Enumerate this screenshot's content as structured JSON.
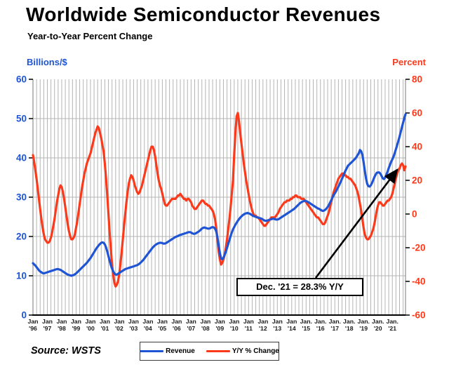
{
  "page": {
    "title": "Worldwide Semiconductor Revenues",
    "subtitle": "Year-to-Year Percent Change"
  },
  "source": "Source: WSTS",
  "annotation": {
    "text": "Dec. '21 = 28.3% Y/Y"
  },
  "legend": [
    {
      "label": "Revenue",
      "color": "#1f55d4"
    },
    {
      "label": "Y/Y % Change",
      "color": "#fb3a1c"
    }
  ],
  "colors": {
    "grid": "#b4b4b4",
    "plot_edge": "#777777",
    "axis_line": "#000000",
    "x_label": "#1a1a1a",
    "arrow": "#000000"
  },
  "axes": {
    "left": {
      "title": "Billions/$",
      "color": "#1f55d4",
      "ticks": [
        0,
        10,
        20,
        30,
        40,
        50,
        60
      ],
      "range": [
        0,
        60
      ]
    },
    "right": {
      "title": "Percent",
      "color": "#fb3a1c",
      "ticks": [
        -60,
        -40,
        -20,
        0,
        20,
        40,
        60,
        80
      ],
      "range": [
        -60,
        80
      ]
    },
    "x": {
      "labels": [
        [
          "Jan",
          "'96"
        ],
        [
          "Jan",
          "'97"
        ],
        [
          "Jan",
          "'98"
        ],
        [
          "Jan",
          "'99"
        ],
        [
          "Jan",
          "'00"
        ],
        [
          "Jan",
          "'01"
        ],
        [
          "Jan",
          "'02"
        ],
        [
          "Jan",
          "'03"
        ],
        [
          "Jan",
          "'04"
        ],
        [
          "Jan",
          "'05"
        ],
        [
          "Jan",
          "'06"
        ],
        [
          "Jan",
          "'07"
        ],
        [
          "Jan",
          "'08"
        ],
        [
          "Jan",
          "'09"
        ],
        [
          "Jan",
          "'10"
        ],
        [
          "Jan",
          "'11"
        ],
        [
          "Jan",
          "'12"
        ],
        [
          "Jan",
          "'13"
        ],
        [
          "Jan",
          "'14"
        ],
        [
          "Jan.",
          "'15"
        ],
        [
          "Jan.",
          "'16"
        ],
        [
          "Jan.",
          "'17"
        ],
        [
          "Jan.",
          "'18"
        ],
        [
          "Jan.",
          "'19"
        ],
        [
          "Jan.",
          "'20"
        ],
        [
          "Jan.",
          "'21"
        ]
      ]
    }
  },
  "chart_data": {
    "type": "line",
    "title": "Worldwide Semiconductor Revenues",
    "subtitle": "Year-to-Year Percent Change",
    "x_monthly": {
      "start": "1996-01",
      "end": "2021-12",
      "points": 312
    },
    "ylabel_left": "Billions/$",
    "ylabel_right": "Percent",
    "ylim_left": [
      0,
      60
    ],
    "ylim_right": [
      -60,
      80
    ],
    "grid": "quarterly vertical, horizontal every 10 (left scale)",
    "legend_position": "bottom center",
    "annotation": "Dec. '21 = 28.3% Y/Y",
    "series": [
      {
        "name": "Revenue",
        "axis": "left",
        "units": "billions $/month (3-mo avg)",
        "color": "#1f55d4",
        "values": [
          13.2,
          12.9,
          12.6,
          12.2,
          11.8,
          11.4,
          11.1,
          10.9,
          10.7,
          10.6,
          10.7,
          10.8,
          10.9,
          11.0,
          11.1,
          11.2,
          11.3,
          11.4,
          11.5,
          11.6,
          11.7,
          11.7,
          11.6,
          11.5,
          11.3,
          11.1,
          10.9,
          10.7,
          10.5,
          10.3,
          10.2,
          10.1,
          10.0,
          10.1,
          10.2,
          10.4,
          10.6,
          10.9,
          11.2,
          11.5,
          11.8,
          12.1,
          12.4,
          12.7,
          13.0,
          13.3,
          13.7,
          14.1,
          14.5,
          15.0,
          15.5,
          16.0,
          16.5,
          17.0,
          17.4,
          17.8,
          18.1,
          18.4,
          18.5,
          18.4,
          18.0,
          17.2,
          16.2,
          15.0,
          13.8,
          12.7,
          11.8,
          11.1,
          10.6,
          10.3,
          10.3,
          10.5,
          10.7,
          10.9,
          11.1,
          11.3,
          11.5,
          11.7,
          11.8,
          11.9,
          12.0,
          12.1,
          12.2,
          12.3,
          12.4,
          12.5,
          12.6,
          12.7,
          12.9,
          13.1,
          13.4,
          13.7,
          14.0,
          14.4,
          14.8,
          15.2,
          15.6,
          16.0,
          16.4,
          16.8,
          17.2,
          17.5,
          17.8,
          18.0,
          18.2,
          18.3,
          18.4,
          18.4,
          18.3,
          18.2,
          18.2,
          18.3,
          18.5,
          18.7,
          18.9,
          19.1,
          19.3,
          19.5,
          19.7,
          19.9,
          20.0,
          20.1,
          20.3,
          20.4,
          20.5,
          20.6,
          20.7,
          20.8,
          20.9,
          21.0,
          21.1,
          21.1,
          21.0,
          20.8,
          20.7,
          20.7,
          20.8,
          21.0,
          21.2,
          21.4,
          21.7,
          22.0,
          22.2,
          22.3,
          22.2,
          22.1,
          22.0,
          22.0,
          22.1,
          22.3,
          22.4,
          22.3,
          22.0,
          21.3,
          19.8,
          17.8,
          15.8,
          14.4,
          14.2,
          14.6,
          15.3,
          16.1,
          17.1,
          18.1,
          19.1,
          20.1,
          21.0,
          21.8,
          22.4,
          23.0,
          23.5,
          24.0,
          24.4,
          24.8,
          25.1,
          25.4,
          25.6,
          25.8,
          25.9,
          26.0,
          25.9,
          25.8,
          25.6,
          25.4,
          25.2,
          25.1,
          25.0,
          24.9,
          24.8,
          24.7,
          24.6,
          24.5,
          24.3,
          24.1,
          24.0,
          24.0,
          24.1,
          24.2,
          24.3,
          24.4,
          24.5,
          24.5,
          24.4,
          24.3,
          24.3,
          24.4,
          24.6,
          24.8,
          25.0,
          25.2,
          25.4,
          25.6,
          25.8,
          26.0,
          26.2,
          26.4,
          26.6,
          26.8,
          27.0,
          27.3,
          27.6,
          27.9,
          28.2,
          28.5,
          28.7,
          28.9,
          29.0,
          29.1,
          29.0,
          28.9,
          28.7,
          28.5,
          28.3,
          28.1,
          27.9,
          27.7,
          27.5,
          27.3,
          27.1,
          27.0,
          26.8,
          26.6,
          26.5,
          26.6,
          26.8,
          27.1,
          27.5,
          28.0,
          28.6,
          29.2,
          29.9,
          30.5,
          31.0,
          31.5,
          32.1,
          32.7,
          33.3,
          34.0,
          34.7,
          35.4,
          36.1,
          36.8,
          37.4,
          38.0,
          38.3,
          38.6,
          38.9,
          39.2,
          39.5,
          39.8,
          40.2,
          40.7,
          41.2,
          42.0,
          41.7,
          40.8,
          39.0,
          36.8,
          34.8,
          33.4,
          32.8,
          32.7,
          33.0,
          33.6,
          34.3,
          35.1,
          35.7,
          36.2,
          36.3,
          36.3,
          36.0,
          35.4,
          34.8,
          34.6,
          35.0,
          35.7,
          36.5,
          37.4,
          38.2,
          39.0,
          39.6,
          40.3,
          41.2,
          42.2,
          43.2,
          44.3,
          45.4,
          46.6,
          47.8,
          49.0,
          50.1,
          51.1
        ]
      },
      {
        "name": "Y/Y % Change",
        "axis": "right",
        "units": "percent",
        "color": "#fb3a1c",
        "values": [
          35,
          31,
          26,
          21,
          15,
          9,
          3,
          -3,
          -8,
          -12,
          -15,
          -16,
          -17,
          -17,
          -16,
          -14,
          -11,
          -7,
          -3,
          2,
          7,
          11,
          15,
          17,
          16,
          13,
          9,
          4,
          -1,
          -6,
          -10,
          -13,
          -15,
          -15,
          -14,
          -12,
          -8,
          -4,
          1,
          6,
          11,
          16,
          20,
          24,
          27,
          30,
          32,
          34,
          36,
          39,
          42,
          45,
          48,
          50,
          52,
          51,
          48,
          45,
          41,
          37,
          30,
          21,
          11,
          0,
          -11,
          -21,
          -30,
          -36,
          -41,
          -43,
          -42,
          -40,
          -36,
          -30,
          -23,
          -15,
          -7,
          0,
          7,
          13,
          18,
          21,
          23,
          22,
          20,
          17,
          15,
          13,
          12,
          13,
          15,
          17,
          20,
          23,
          26,
          29,
          32,
          35,
          38,
          40,
          40,
          38,
          34,
          29,
          24,
          20,
          17,
          15,
          12,
          9,
          6,
          5,
          5,
          6,
          7,
          8,
          9,
          9,
          9,
          9,
          10,
          11,
          11,
          12,
          11,
          10,
          9,
          9,
          8,
          9,
          9,
          8,
          7,
          5,
          4,
          3,
          3,
          4,
          5,
          6,
          7,
          8,
          8,
          7,
          6,
          6,
          5,
          5,
          4,
          3,
          2,
          0,
          -3,
          -8,
          -15,
          -22,
          -27,
          -30,
          -29,
          -27,
          -24,
          -20,
          -15,
          -9,
          -3,
          4,
          12,
          20,
          35,
          48,
          58,
          60,
          55,
          48,
          42,
          36,
          30,
          25,
          20,
          16,
          12,
          8,
          5,
          2,
          0,
          -1,
          -1,
          -2,
          -2,
          -3,
          -4,
          -5,
          -6,
          -7,
          -7,
          -6,
          -5,
          -4,
          -3,
          -2,
          -2,
          -2,
          -2,
          -1,
          0,
          1,
          3,
          4,
          5,
          6,
          7,
          7,
          8,
          8,
          8,
          9,
          9,
          10,
          10,
          11,
          11,
          10,
          10,
          10,
          9,
          9,
          9,
          8,
          7,
          6,
          5,
          4,
          3,
          2,
          1,
          0,
          -1,
          -2,
          -2,
          -3,
          -4,
          -5,
          -6,
          -6,
          -5,
          -3,
          -1,
          1,
          4,
          7,
          10,
          13,
          15,
          17,
          19,
          21,
          22,
          23,
          24,
          24,
          23,
          23,
          22,
          22,
          21,
          21,
          20,
          19,
          18,
          17,
          15,
          13,
          10,
          6,
          2,
          -3,
          -8,
          -12,
          -14,
          -15,
          -15,
          -14,
          -13,
          -11,
          -9,
          -6,
          -2,
          2,
          5,
          7,
          7,
          6,
          5,
          5,
          6,
          7,
          8,
          8,
          9,
          10,
          12,
          15,
          18,
          21,
          24,
          26,
          27,
          29,
          30,
          29,
          26,
          28.3
        ]
      }
    ]
  }
}
